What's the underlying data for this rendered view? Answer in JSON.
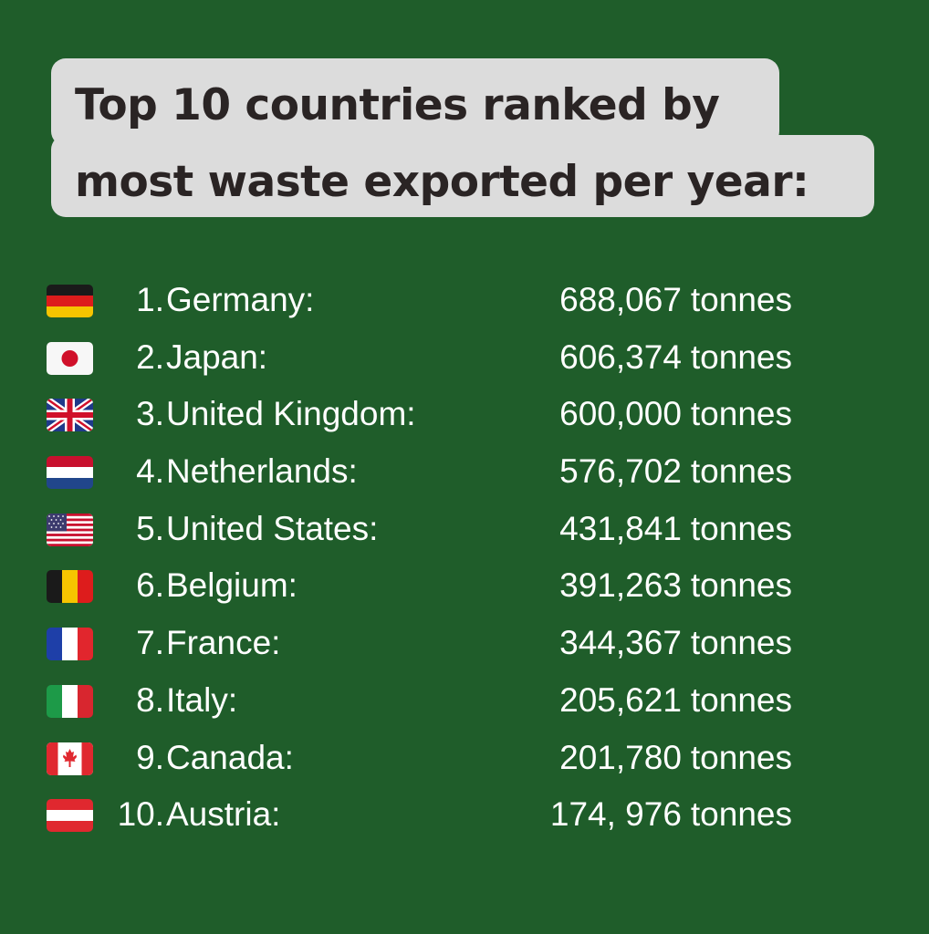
{
  "title": {
    "line1": "Top 10 countries ranked by",
    "line2": "most waste exported per year:"
  },
  "unit": "tonnes",
  "rows": [
    {
      "rank": "1.",
      "country": "Germany:",
      "amount": "688,067",
      "flag": "germany-flag-icon"
    },
    {
      "rank": "2.",
      "country": "Japan:",
      "amount": "606,374",
      "flag": "japan-flag-icon"
    },
    {
      "rank": "3.",
      "country": "United Kingdom:",
      "amount": "600,000",
      "flag": "united-kingdom-flag-icon"
    },
    {
      "rank": "4.",
      "country": "Netherlands:",
      "amount": "576,702",
      "flag": "netherlands-flag-icon"
    },
    {
      "rank": "5.",
      "country": "United States:",
      "amount": "431,841",
      "flag": "united-states-flag-icon"
    },
    {
      "rank": "6.",
      "country": "Belgium:",
      "amount": "391,263",
      "flag": "belgium-flag-icon"
    },
    {
      "rank": "7.",
      "country": "France:",
      "amount": "344,367",
      "flag": "france-flag-icon"
    },
    {
      "rank": "8.",
      "country": "Italy:",
      "amount": "205,621",
      "flag": "italy-flag-icon"
    },
    {
      "rank": "9.",
      "country": "Canada:",
      "amount": "201,780",
      "flag": "canada-flag-icon"
    },
    {
      "rank": "10.",
      "country": "Austria:",
      "amount": "174, 976",
      "flag": "austria-flag-icon"
    }
  ],
  "colors": {
    "background": "#1f5d2a",
    "title_box": "#dcdcdc",
    "title_text": "#2a2424",
    "row_text": "#ffffff"
  }
}
